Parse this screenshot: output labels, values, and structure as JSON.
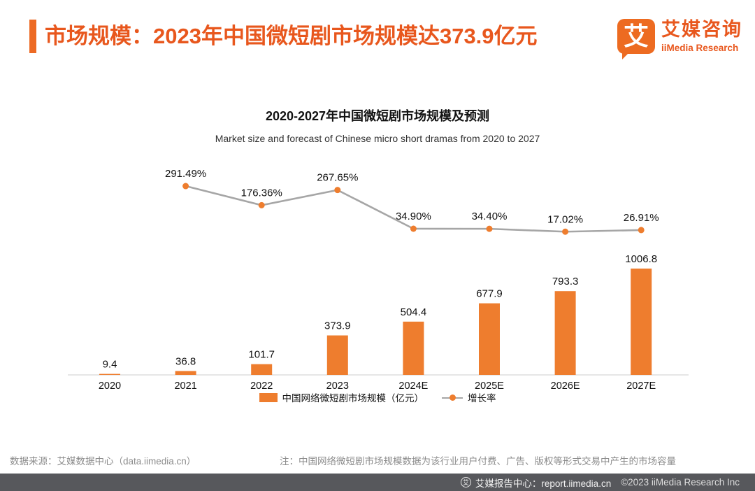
{
  "colors": {
    "accent": "#E8571D",
    "bar": "#EE7D2E",
    "line": "#A6A6A6",
    "marker": "#EE7D2E",
    "axis": "#D8D8D8",
    "bottom_bar_bg": "#57585C"
  },
  "header": {
    "title": "市场规模：2023年中国微短剧市场规模达373.9亿元",
    "logo": {
      "glyph": "艾",
      "brand_cn": "艾媒咨询",
      "brand_en": "iiMedia Research"
    }
  },
  "chart_data": {
    "type": "bar+line",
    "title": "2020-2027年中国微短剧市场规模及预测",
    "subtitle": "Market size and forecast of Chinese micro short dramas from 2020 to 2027",
    "categories": [
      "2020",
      "2021",
      "2022",
      "2023",
      "2024E",
      "2025E",
      "2026E",
      "2027E"
    ],
    "series": [
      {
        "name": "中国网络微短剧市场规模（亿元）",
        "type": "bar",
        "color": "#EE7D2E",
        "values": [
          9.4,
          36.8,
          101.7,
          373.9,
          504.4,
          677.9,
          793.3,
          1006.8
        ],
        "value_labels": [
          "9.4",
          "36.8",
          "101.7",
          "373.9",
          "504.4",
          "677.9",
          "793.3",
          "1006.8"
        ]
      },
      {
        "name": "增长率",
        "type": "line",
        "color": "#A6A6A6",
        "marker_color": "#EE7D2E",
        "values": [
          null,
          291.49,
          176.36,
          267.65,
          34.9,
          34.4,
          17.02,
          26.91
        ],
        "labels": [
          "",
          "291.49%",
          "176.36%",
          "267.65%",
          "34.90%",
          "34.40%",
          "17.02%",
          "26.91%"
        ]
      }
    ],
    "legend": [
      {
        "label": "中国网络微短剧市场规模（亿元）",
        "swatch": "bar"
      },
      {
        "label": "增长率",
        "swatch": "line"
      }
    ],
    "grid": false,
    "legend_position": "bottom"
  },
  "footer": {
    "source": "数据来源：艾媒数据中心（data.iimedia.cn）",
    "note": "注：中国网络微短剧市场规模数据为该行业用户付费、广告、版权等形式交易中产生的市场容量",
    "report_center": "艾媒报告中心：report.iimedia.cn",
    "copyright": "©2023  iiMedia Research Inc"
  }
}
